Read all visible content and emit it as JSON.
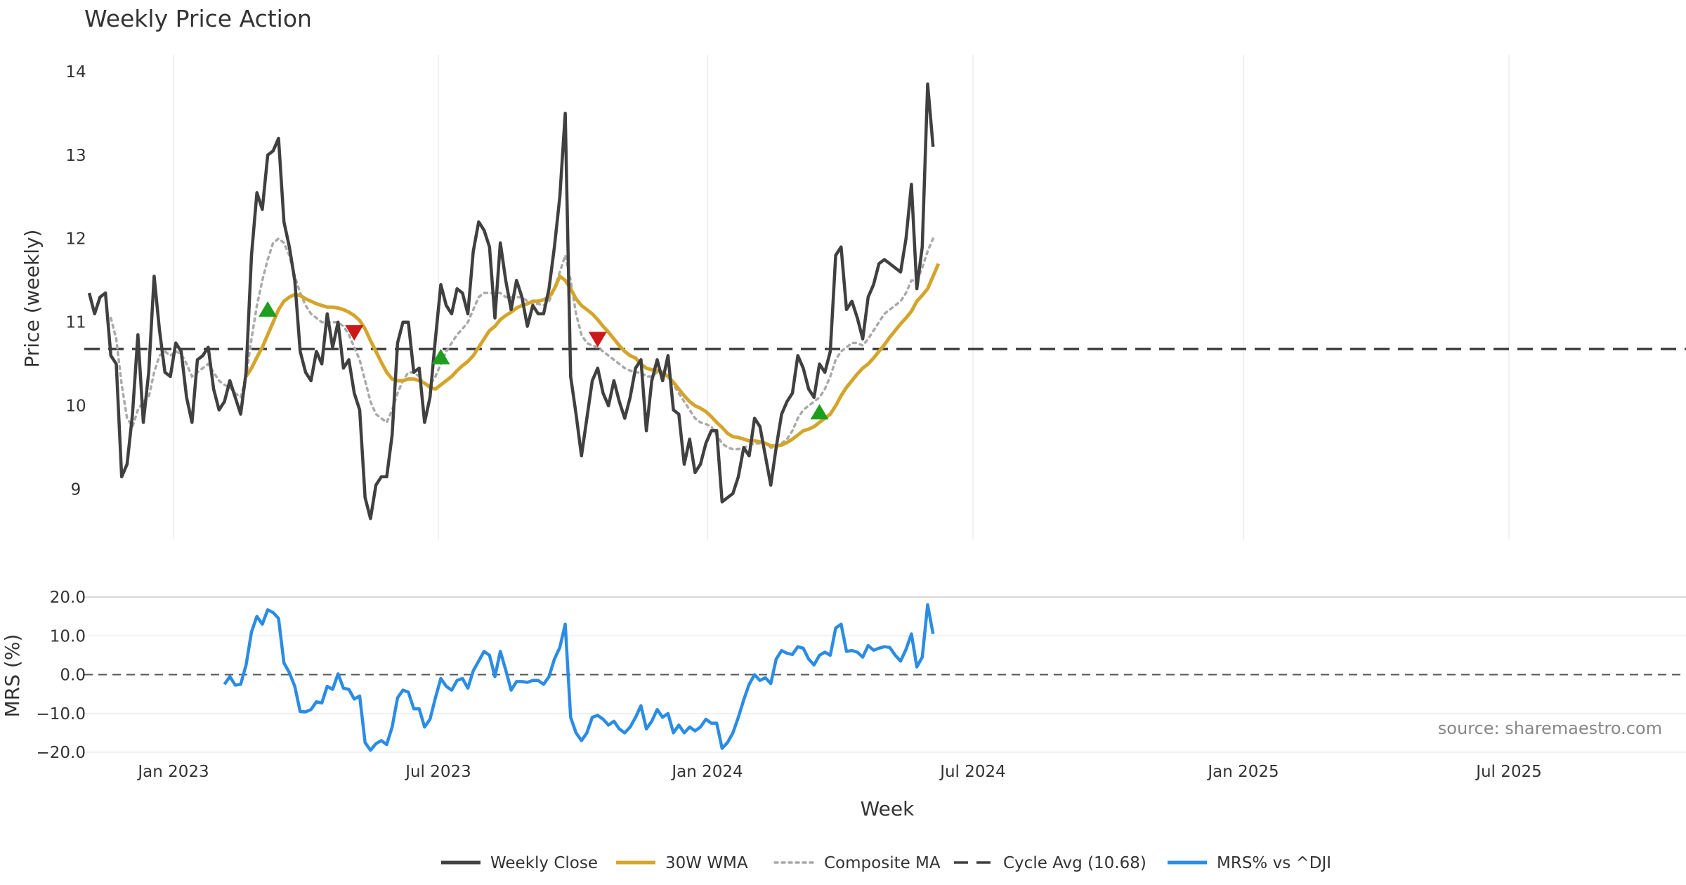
{
  "chart_data": {
    "type": "line",
    "title": "Weekly Price Action",
    "x_axis_label": "Week",
    "x_ticks": [
      "Jan 2023",
      "Jul 2023",
      "Jan 2024",
      "Jul 2024",
      "Jan 2025",
      "Jul 2025"
    ],
    "price_panel": {
      "ylabel": "Price (weekly)",
      "y_ticks": [
        "9",
        "10",
        "11",
        "12",
        "13",
        "14"
      ],
      "ylim": [
        8.4,
        14.2
      ],
      "cycle_avg": 10.68,
      "weekly_close": [
        11.35,
        11.1,
        11.3,
        11.35,
        10.6,
        10.5,
        9.15,
        9.3,
        9.9,
        10.85,
        9.8,
        10.4,
        11.55,
        10.9,
        10.4,
        10.35,
        10.75,
        10.65,
        10.1,
        9.8,
        10.55,
        10.6,
        10.7,
        10.2,
        9.95,
        10.05,
        10.3,
        10.1,
        9.9,
        10.4,
        11.8,
        12.55,
        12.35,
        13.0,
        13.05,
        13.2,
        12.2,
        11.9,
        11.5,
        10.65,
        10.4,
        10.3,
        10.65,
        10.5,
        11.1,
        10.7,
        11.0,
        10.45,
        10.55,
        10.15,
        9.95,
        8.9,
        8.65,
        9.05,
        9.15,
        9.15,
        9.65,
        10.75,
        11.0,
        11.0,
        10.4,
        10.45,
        9.8,
        10.1,
        10.8,
        11.45,
        11.2,
        11.1,
        11.4,
        11.35,
        11.1,
        11.85,
        12.2,
        12.1,
        11.9,
        11.05,
        11.95,
        11.5,
        11.15,
        11.5,
        11.3,
        10.95,
        11.2,
        11.1,
        11.1,
        11.4,
        11.9,
        12.5,
        13.5,
        10.35,
        9.9,
        9.4,
        9.85,
        10.3,
        10.45,
        10.15,
        10.0,
        10.3,
        10.05,
        9.85,
        10.1,
        10.45,
        10.55,
        9.7,
        10.3,
        10.55,
        10.3,
        10.6,
        9.95,
        9.9,
        9.3,
        9.6,
        9.2,
        9.3,
        9.55,
        9.7,
        9.7,
        8.85,
        8.9,
        8.95,
        9.15,
        9.5,
        9.4,
        9.85,
        9.75,
        9.4,
        9.05,
        9.5,
        9.9,
        10.05,
        10.15,
        10.6,
        10.45,
        10.2,
        10.1,
        10.5,
        10.4,
        10.65,
        11.8,
        11.9,
        11.15,
        11.25,
        11.05,
        10.8,
        11.3,
        11.45,
        11.7,
        11.75,
        11.7,
        11.65,
        11.6,
        12.0,
        12.65,
        11.4,
        11.9,
        13.85,
        13.1
      ],
      "wma_30w": [
        null,
        null,
        null,
        null,
        null,
        null,
        null,
        null,
        null,
        null,
        null,
        null,
        null,
        null,
        null,
        null,
        null,
        null,
        null,
        null,
        null,
        null,
        null,
        null,
        null,
        null,
        null,
        null,
        null,
        10.35,
        10.45,
        10.58,
        10.7,
        10.85,
        11.0,
        11.15,
        11.25,
        11.3,
        11.33,
        11.32,
        11.28,
        11.25,
        11.22,
        11.2,
        11.18,
        11.18,
        11.17,
        11.15,
        11.12,
        11.08,
        11.02,
        10.92,
        10.78,
        10.65,
        10.52,
        10.4,
        10.32,
        10.3,
        10.3,
        10.32,
        10.32,
        10.3,
        10.27,
        10.22,
        10.2,
        10.25,
        10.3,
        10.35,
        10.42,
        10.48,
        10.53,
        10.6,
        10.7,
        10.8,
        10.9,
        10.95,
        11.03,
        11.08,
        11.12,
        11.17,
        11.2,
        11.22,
        11.25,
        11.25,
        11.27,
        11.3,
        11.4,
        11.55,
        11.5,
        11.4,
        11.28,
        11.2,
        11.15,
        11.1,
        11.03,
        10.95,
        10.88,
        10.8,
        10.72,
        10.65,
        10.6,
        10.57,
        10.5,
        10.45,
        10.43,
        10.42,
        10.4,
        10.35,
        10.28,
        10.2,
        10.12,
        10.05,
        10.0,
        9.97,
        9.93,
        9.87,
        9.8,
        9.74,
        9.67,
        9.63,
        9.62,
        9.6,
        9.58,
        9.58,
        9.57,
        9.55,
        9.52,
        9.52,
        9.53,
        9.56,
        9.6,
        9.65,
        9.7,
        9.72,
        9.75,
        9.8,
        9.85,
        9.9,
        10.0,
        10.12,
        10.22,
        10.3,
        10.38,
        10.45,
        10.5,
        10.57,
        10.65,
        10.73,
        10.82,
        10.9,
        10.98,
        11.05,
        11.13,
        11.25,
        11.32,
        11.4,
        11.55,
        11.7
      ],
      "composite_ma": [
        null,
        null,
        null,
        null,
        11.05,
        10.8,
        10.25,
        9.85,
        9.75,
        9.95,
        10.05,
        10.1,
        10.4,
        10.6,
        10.65,
        10.6,
        10.65,
        10.62,
        10.5,
        10.35,
        10.4,
        10.45,
        10.5,
        10.4,
        10.3,
        10.25,
        10.22,
        10.15,
        10.1,
        10.35,
        10.8,
        11.2,
        11.5,
        11.75,
        11.95,
        12.0,
        11.95,
        11.8,
        11.55,
        11.35,
        11.2,
        11.1,
        11.05,
        11.0,
        11.0,
        11.0,
        11.0,
        10.95,
        10.85,
        10.7,
        10.55,
        10.3,
        10.05,
        9.9,
        9.85,
        9.8,
        9.95,
        10.15,
        10.3,
        10.4,
        10.4,
        10.35,
        10.25,
        10.25,
        10.35,
        10.5,
        10.65,
        10.75,
        10.85,
        10.92,
        11.0,
        11.15,
        11.3,
        11.35,
        11.35,
        11.35,
        11.35,
        11.3,
        11.3,
        11.3,
        11.3,
        11.25,
        11.22,
        11.22,
        11.2,
        11.25,
        11.4,
        11.6,
        11.8,
        11.5,
        11.1,
        10.85,
        10.75,
        10.72,
        10.7,
        10.65,
        10.6,
        10.55,
        10.5,
        10.45,
        10.42,
        10.4,
        10.4,
        10.35,
        10.35,
        10.4,
        10.38,
        10.35,
        10.25,
        10.15,
        10.05,
        9.95,
        9.85,
        9.8,
        9.78,
        9.75,
        9.65,
        9.55,
        9.5,
        9.48,
        9.48,
        9.5,
        9.52,
        9.55,
        9.55,
        9.55,
        9.5,
        9.5,
        9.55,
        9.6,
        9.7,
        9.85,
        9.95,
        10.0,
        10.05,
        10.1,
        10.2,
        10.35,
        10.55,
        10.65,
        10.7,
        10.75,
        10.75,
        10.72,
        10.8,
        10.9,
        11.0,
        11.1,
        11.15,
        11.2,
        11.25,
        11.35,
        11.5,
        11.5,
        11.65,
        11.85,
        12.0
      ],
      "markers": [
        {
          "type": "buy",
          "index": 33,
          "value": 11.15
        },
        {
          "type": "sell",
          "index": 49,
          "value": 10.88
        },
        {
          "type": "buy",
          "index": 65,
          "value": 10.58
        },
        {
          "type": "sell",
          "index": 94,
          "value": 10.8
        },
        {
          "type": "buy",
          "index": 135,
          "value": 9.92
        }
      ]
    },
    "mrs_panel": {
      "ylabel": "MRS (%)",
      "y_ticks": [
        "−20.0",
        "−10.0",
        "0.0",
        "10.0",
        "20.0"
      ],
      "ylim": [
        -20,
        20
      ],
      "mrs_start_index": 25,
      "mrs_values": [
        -2.5,
        -0.5,
        -2.7,
        -2.5,
        2.5,
        11.0,
        15.0,
        13.0,
        16.7,
        16.0,
        14.5,
        3.0,
        0.5,
        -3.0,
        -9.5,
        -9.6,
        -9.0,
        -7.0,
        -7.3,
        -3.0,
        -3.8,
        0.2,
        -3.5,
        -3.8,
        -6.3,
        -5.5,
        -17.5,
        -19.5,
        -17.8,
        -17.0,
        -18.0,
        -13.5,
        -6.0,
        -4.0,
        -4.5,
        -8.8,
        -8.8,
        -13.5,
        -11.5,
        -6.0,
        -1.0,
        -3.0,
        -4.0,
        -1.5,
        -1.0,
        -3.5,
        1.0,
        3.5,
        6.0,
        5.0,
        -0.5,
        6.0,
        1.2,
        -4.0,
        -1.8,
        -1.8,
        -2.0,
        -1.5,
        -1.5,
        -2.5,
        -0.5,
        4.0,
        7.0,
        13.0,
        -11.0,
        -15.0,
        -17.0,
        -15.0,
        -11.0,
        -10.5,
        -11.5,
        -13.0,
        -12.0,
        -14.0,
        -15.0,
        -13.5,
        -11.0,
        -8.0,
        -14.0,
        -12.0,
        -9.0,
        -11.0,
        -10.0,
        -15.0,
        -13.0,
        -15.0,
        -13.5,
        -14.5,
        -13.5,
        -11.5,
        -12.5,
        -12.5,
        -19.0,
        -17.5,
        -15.0,
        -11.0,
        -6.5,
        -2.5,
        0.0,
        -1.5,
        -0.8,
        -2.3,
        4.0,
        6.2,
        5.5,
        5.2,
        7.2,
        6.8,
        4.0,
        2.5,
        5.0,
        5.8,
        5.0,
        12.0,
        13.0,
        6.0,
        6.2,
        5.8,
        4.5,
        7.5,
        6.3,
        6.8,
        7.2,
        7.0,
        5.0,
        3.5,
        6.5,
        10.5,
        2.0,
        4.5,
        18.0,
        10.5
      ]
    },
    "legend": [
      {
        "label": "Weekly Close",
        "color": "#404040",
        "style": "solid"
      },
      {
        "label": "30W WMA",
        "color": "#d4a52c",
        "style": "solid"
      },
      {
        "label": "Composite MA",
        "color": "#aaaaaa",
        "style": "dotted"
      },
      {
        "label": "Cycle Avg (10.68)",
        "color": "#404040",
        "style": "dashed"
      },
      {
        "label": "MRS% vs ^DJI",
        "color": "#2b8ce4",
        "style": "solid"
      }
    ],
    "source": "source: sharemaestro.com",
    "colors": {
      "close": "#404040",
      "wma": "#d4a52c",
      "composite": "#aaaaaa",
      "cycle": "#404040",
      "mrs": "#2b8ce4",
      "buy": "#1e9e1e",
      "sell": "#cc1a1a"
    }
  }
}
